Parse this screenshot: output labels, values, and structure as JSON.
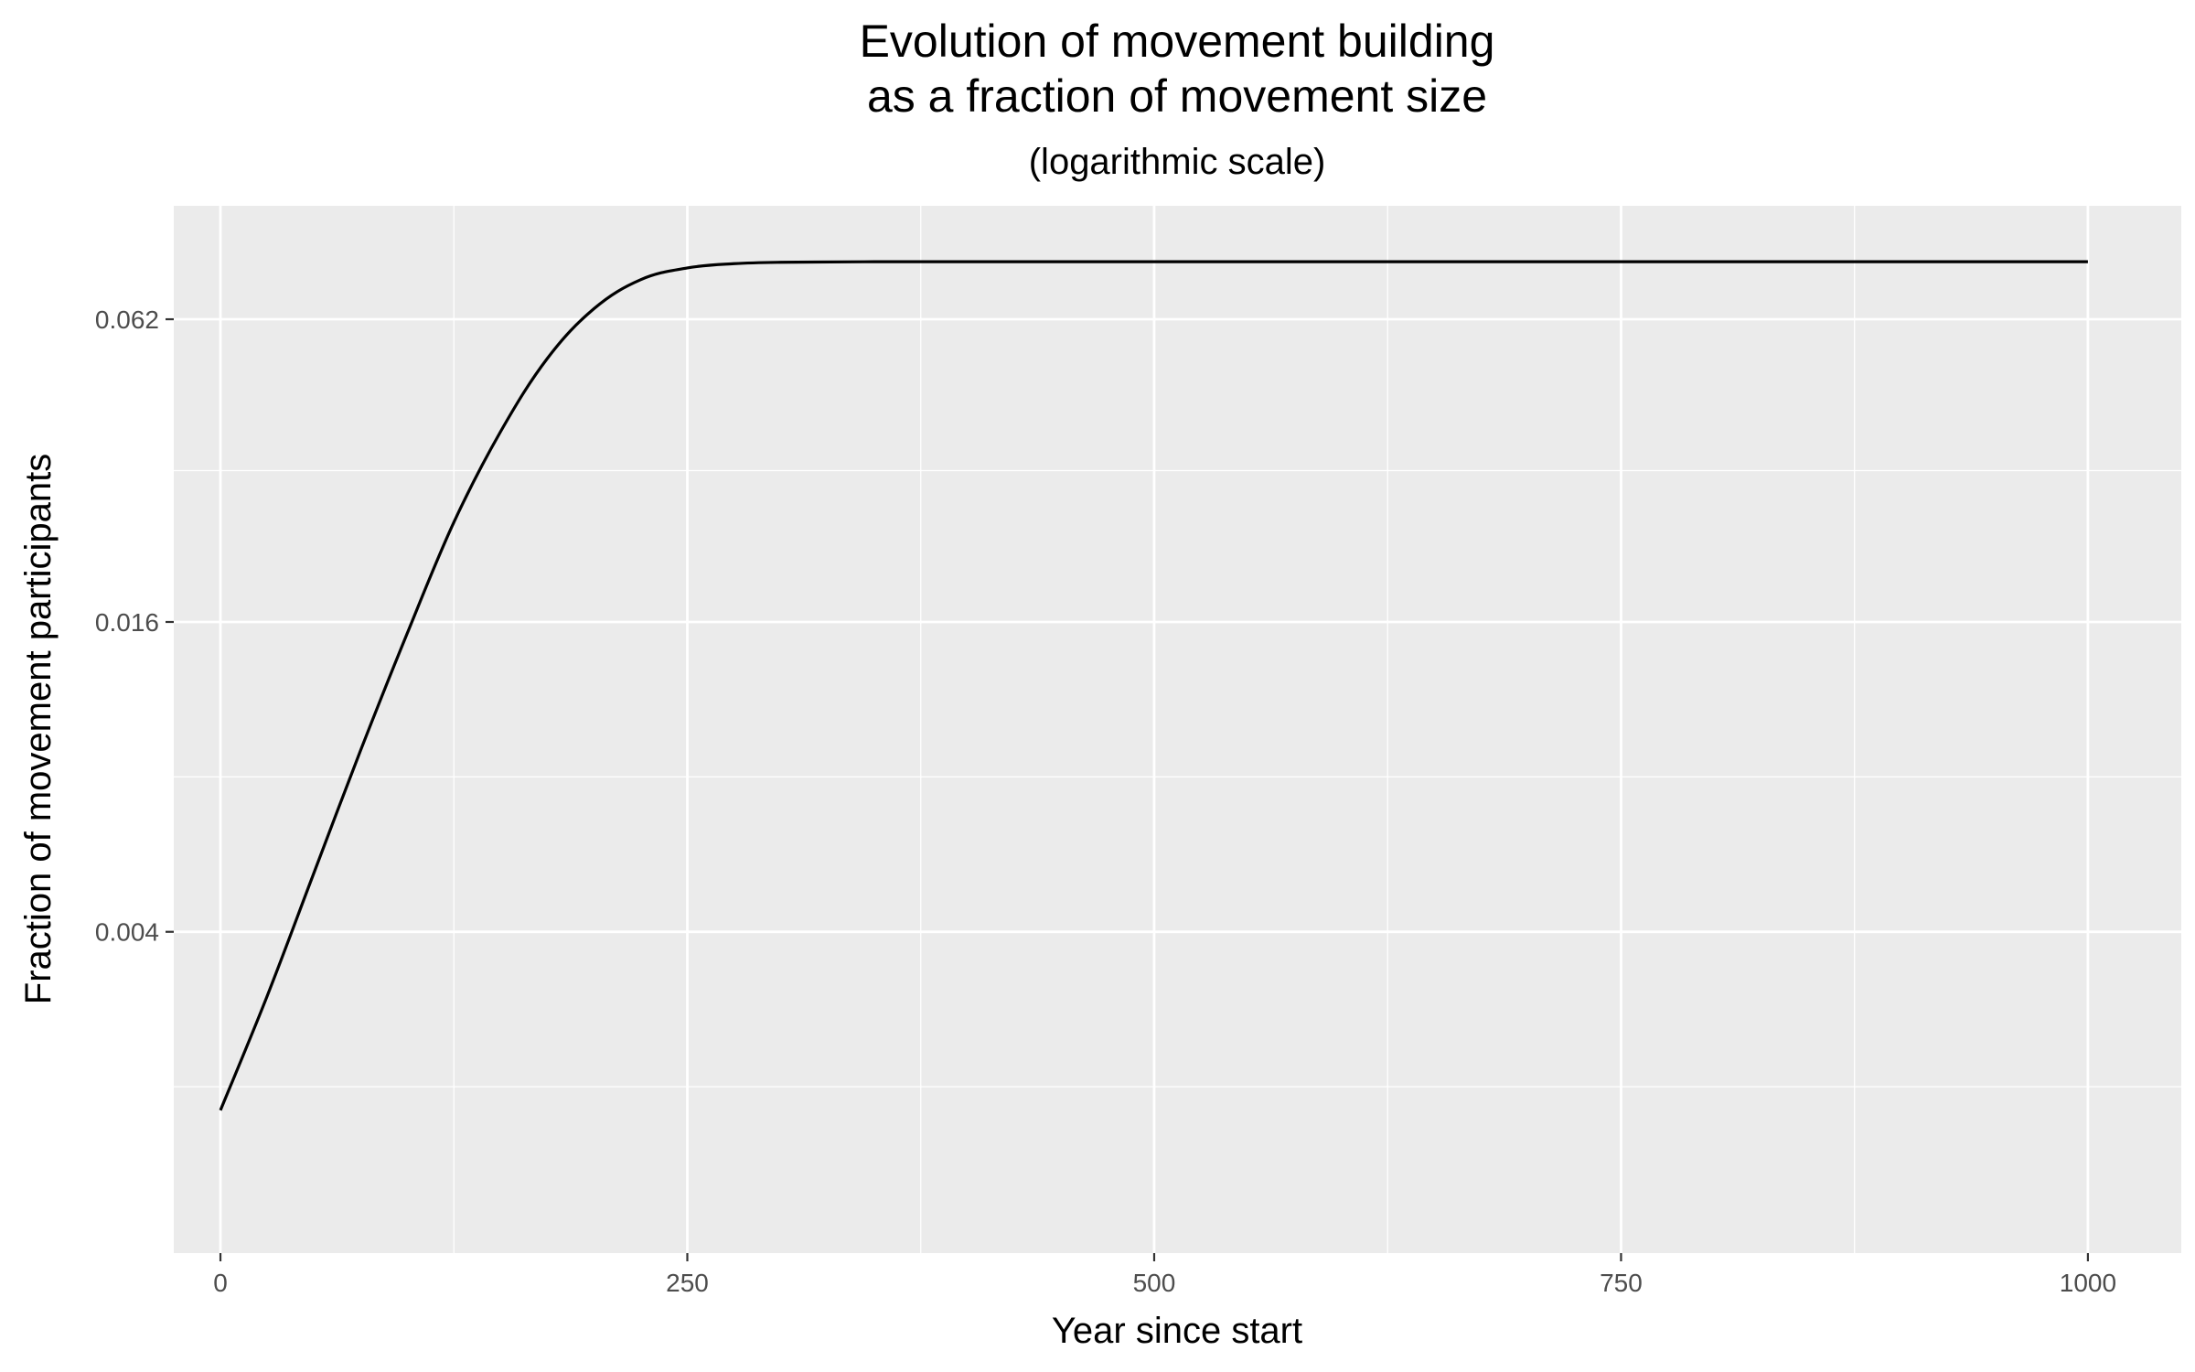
{
  "chart_data": {
    "type": "line",
    "title_line1": "Evolution of movement building",
    "title_line2": "as a fraction of movement size",
    "subtitle": "(logarithmic scale)",
    "xlabel": "Year since start",
    "ylabel": "Fraction of movement participants",
    "x_scale": "linear",
    "y_scale": "log",
    "xlim": [
      -25,
      1050
    ],
    "ylim": [
      0.00095,
      0.103
    ],
    "x_ticks": [
      {
        "value": 0,
        "label": "0"
      },
      {
        "value": 250,
        "label": "250"
      },
      {
        "value": 500,
        "label": "500"
      },
      {
        "value": 750,
        "label": "750"
      },
      {
        "value": 1000,
        "label": "1000"
      }
    ],
    "y_ticks": [
      {
        "value": 0.004,
        "label": "0.004"
      },
      {
        "value": 0.016,
        "label": "0.016"
      },
      {
        "value": 0.062,
        "label": "0.062"
      }
    ],
    "grid": true,
    "legend": "none",
    "colors": {
      "panel": "#ebebeb",
      "grid": "#ffffff",
      "line": "#000000"
    },
    "series": [
      {
        "x": [
          0,
          25,
          50,
          75,
          100,
          125,
          150,
          175,
          200,
          225,
          250,
          275,
          300,
          350,
          400,
          500,
          600,
          700,
          800,
          900,
          1000
        ],
        "y": [
          0.0018,
          0.003,
          0.0052,
          0.009,
          0.0152,
          0.025,
          0.0375,
          0.052,
          0.065,
          0.074,
          0.078,
          0.0795,
          0.08,
          0.0802,
          0.0802,
          0.0802,
          0.0802,
          0.0802,
          0.0802,
          0.0802,
          0.0802
        ]
      }
    ]
  }
}
